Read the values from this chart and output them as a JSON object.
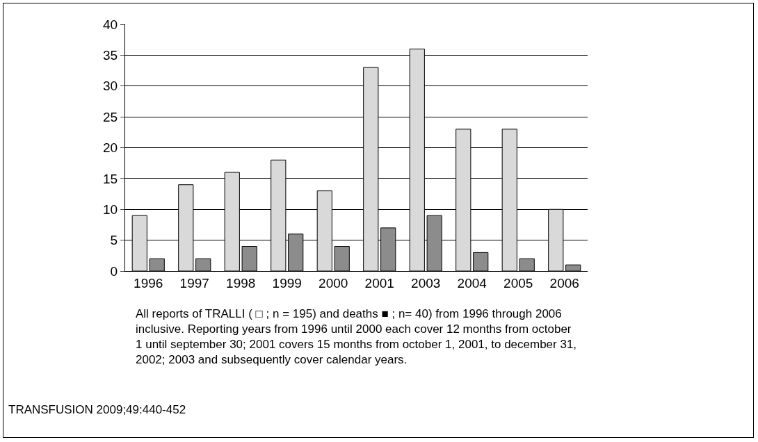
{
  "chart_data": {
    "type": "bar",
    "categories": [
      "1996",
      "1997",
      "1998",
      "1999",
      "2000",
      "2001",
      "2003",
      "2004",
      "2005",
      "2006"
    ],
    "series": [
      {
        "color": "#d9d9d9",
        "values": [
          9,
          14,
          16,
          18,
          13,
          33,
          36,
          23,
          23,
          10
        ]
      },
      {
        "color": "#8c8c8c",
        "values": [
          2,
          2,
          4,
          6,
          4,
          7,
          9,
          3,
          2,
          1
        ]
      }
    ],
    "ylim": [
      0,
      40
    ],
    "yticks": [
      0,
      5,
      10,
      15,
      20,
      25,
      30,
      35,
      40
    ],
    "grid": "y",
    "annotations": [
      "All reports of TRALLI ( □ ; n = 195) and deaths ■ ; n= 40) from 1996 through 2006\ninclusive. Reporting years from 1996 until 2000 each cover 12 months from october\n1 until september 30; 2001 covers 15 months from october 1, 2001, to december 31,\n2002; 2003 and subsequently cover calendar years.",
      "TRANSFUSION 2009;49:440-452"
    ]
  }
}
